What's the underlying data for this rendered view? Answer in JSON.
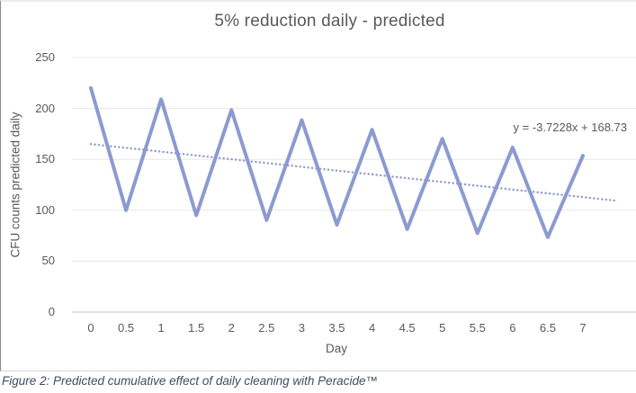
{
  "caption": "Figure 2: Predicted cumulative effect of daily cleaning with Peracide™",
  "chart_data": {
    "type": "line",
    "title": "5% reduction daily - predicted",
    "xlabel": "Day",
    "ylabel": "CFU counts predicted daily",
    "x": [
      0,
      0.5,
      1,
      1.5,
      2,
      2.5,
      3,
      3.5,
      4,
      4.5,
      5,
      5.5,
      6,
      6.5,
      7
    ],
    "xtick_labels": [
      "0",
      "0.5",
      "1",
      "1.5",
      "2",
      "2.5",
      "3",
      "3.5",
      "4",
      "4.5",
      "5",
      "5.5",
      "6",
      "6.5",
      "7"
    ],
    "values": [
      220,
      100,
      209,
      95,
      198.55,
      90.25,
      188.62,
      85.74,
      179.19,
      81.45,
      170.23,
      77.38,
      161.72,
      73.51,
      153.63
    ],
    "ylim": [
      0,
      250
    ],
    "yticks": [
      0,
      50,
      100,
      150,
      200,
      250
    ],
    "grid": true,
    "legend": "none",
    "trendline": {
      "label": "y = -3.7228x + 168.73",
      "slope": -3.7228,
      "intercept": 168.73,
      "x_unit": "period index 1-15 (half-day categories)",
      "forecast_forward_periods": 1,
      "style": "dotted"
    },
    "colors": {
      "series_line": "#8c9ad0",
      "trendline": "#8c99cc",
      "gridline": "#e7e7e7",
      "axis_line": "#c6c6c6",
      "axis_text": "#595959",
      "title_text": "#595959",
      "caption_text": "#3f4d63"
    }
  }
}
